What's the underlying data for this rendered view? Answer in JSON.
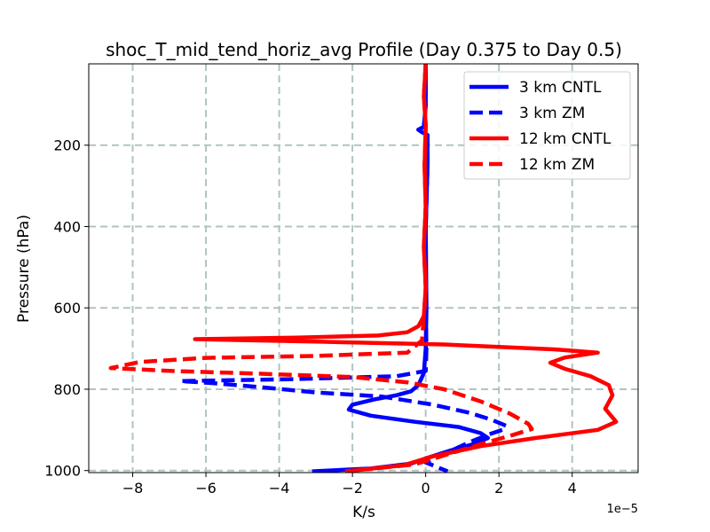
{
  "chart_data": {
    "type": "line",
    "title": "shoc_T_mid_tend_horiz_avg Profile (Day 0.375 to Day 0.5)",
    "xlabel": "K/s",
    "ylabel": "Pressure (hPa)",
    "x_offset_label": "1e−5",
    "xlim": [
      -9.2,
      5.8
    ],
    "ylim": [
      1005,
      0
    ],
    "y_inverted": true,
    "grid": true,
    "legend_position": "upper right",
    "x_ticks": [
      -8,
      -6,
      -4,
      -2,
      0,
      2,
      4
    ],
    "x_tick_labels": [
      "−8",
      "−6",
      "−4",
      "−2",
      "0",
      "2",
      "4"
    ],
    "y_ticks": [
      200,
      400,
      600,
      800,
      1000
    ],
    "y_tick_labels": [
      "200",
      "400",
      "600",
      "800",
      "1000"
    ],
    "series": [
      {
        "name": "3 km CNTL",
        "color": "#0000ff",
        "style": "solid",
        "points": [
          [
            0.0,
            0
          ],
          [
            0.0,
            100
          ],
          [
            -0.05,
            155
          ],
          [
            -0.2,
            162
          ],
          [
            -0.1,
            168
          ],
          [
            0.05,
            175
          ],
          [
            0.05,
            250
          ],
          [
            0.0,
            400
          ],
          [
            0.02,
            600
          ],
          [
            0.0,
            700
          ],
          [
            -0.05,
            760
          ],
          [
            -0.2,
            790
          ],
          [
            -0.4,
            805
          ],
          [
            -0.8,
            815
          ],
          [
            -1.4,
            825
          ],
          [
            -2.0,
            838
          ],
          [
            -2.1,
            850
          ],
          [
            -1.5,
            865
          ],
          [
            -0.3,
            880
          ],
          [
            0.9,
            893
          ],
          [
            1.5,
            908
          ],
          [
            1.7,
            920
          ],
          [
            1.3,
            935
          ],
          [
            0.7,
            950
          ],
          [
            0.1,
            967
          ],
          [
            -0.4,
            983
          ],
          [
            -1.5,
            995
          ],
          [
            -3.1,
            1002
          ]
        ]
      },
      {
        "name": "3 km ZM",
        "color": "#0000ff",
        "style": "dashed",
        "points": [
          [
            0.0,
            0
          ],
          [
            0.0,
            100
          ],
          [
            -0.05,
            155
          ],
          [
            -0.2,
            162
          ],
          [
            -0.1,
            168
          ],
          [
            0.05,
            175
          ],
          [
            0.05,
            250
          ],
          [
            0.0,
            400
          ],
          [
            0.0,
            600
          ],
          [
            0.02,
            700
          ],
          [
            0.0,
            755
          ],
          [
            -0.8,
            768
          ],
          [
            -3.5,
            775
          ],
          [
            -6.7,
            780
          ],
          [
            -5.8,
            785
          ],
          [
            -4.5,
            795
          ],
          [
            -3.0,
            808
          ],
          [
            -1.2,
            818
          ],
          [
            0.2,
            838
          ],
          [
            1.2,
            858
          ],
          [
            1.8,
            875
          ],
          [
            2.2,
            890
          ],
          [
            2.1,
            900
          ],
          [
            1.7,
            912
          ],
          [
            1.2,
            930
          ],
          [
            0.6,
            955
          ],
          [
            0.0,
            980
          ],
          [
            0.6,
            1002
          ]
        ]
      },
      {
        "name": "12 km CNTL",
        "color": "#ff0000",
        "style": "solid",
        "points": [
          [
            0.0,
            0
          ],
          [
            -0.05,
            80
          ],
          [
            0.0,
            150
          ],
          [
            -0.03,
            250
          ],
          [
            0.0,
            350
          ],
          [
            -0.05,
            450
          ],
          [
            0.0,
            550
          ],
          [
            -0.05,
            620
          ],
          [
            -0.2,
            645
          ],
          [
            -0.5,
            660
          ],
          [
            -1.3,
            668
          ],
          [
            -3.5,
            673
          ],
          [
            -6.3,
            677
          ],
          [
            -3.0,
            683
          ],
          [
            0.5,
            690
          ],
          [
            3.5,
            702
          ],
          [
            4.7,
            710
          ],
          [
            3.8,
            722
          ],
          [
            3.4,
            735
          ],
          [
            3.8,
            750
          ],
          [
            4.5,
            768
          ],
          [
            5.0,
            790
          ],
          [
            5.1,
            815
          ],
          [
            4.9,
            848
          ],
          [
            5.2,
            880
          ],
          [
            4.7,
            900
          ],
          [
            3.0,
            920
          ],
          [
            1.5,
            940
          ],
          [
            0.2,
            965
          ],
          [
            -0.6,
            987
          ],
          [
            -2.2,
            1002
          ]
        ]
      },
      {
        "name": "12 km ZM",
        "color": "#ff0000",
        "style": "dashed",
        "points": [
          [
            0.0,
            0
          ],
          [
            -0.05,
            80
          ],
          [
            0.0,
            150
          ],
          [
            -0.03,
            250
          ],
          [
            0.0,
            350
          ],
          [
            -0.05,
            450
          ],
          [
            0.0,
            550
          ],
          [
            -0.05,
            620
          ],
          [
            -0.1,
            680
          ],
          [
            -0.5,
            710
          ],
          [
            -3.0,
            718
          ],
          [
            -6.0,
            723
          ],
          [
            -7.8,
            733
          ],
          [
            -8.6,
            748
          ],
          [
            -7.0,
            755
          ],
          [
            -4.5,
            762
          ],
          [
            -2.0,
            770
          ],
          [
            -0.5,
            783
          ],
          [
            0.5,
            800
          ],
          [
            1.5,
            830
          ],
          [
            2.3,
            860
          ],
          [
            2.8,
            885
          ],
          [
            2.9,
            898
          ],
          [
            2.4,
            912
          ],
          [
            1.5,
            935
          ],
          [
            0.6,
            960
          ],
          [
            -0.3,
            985
          ],
          [
            -2.2,
            1002
          ]
        ]
      }
    ]
  }
}
